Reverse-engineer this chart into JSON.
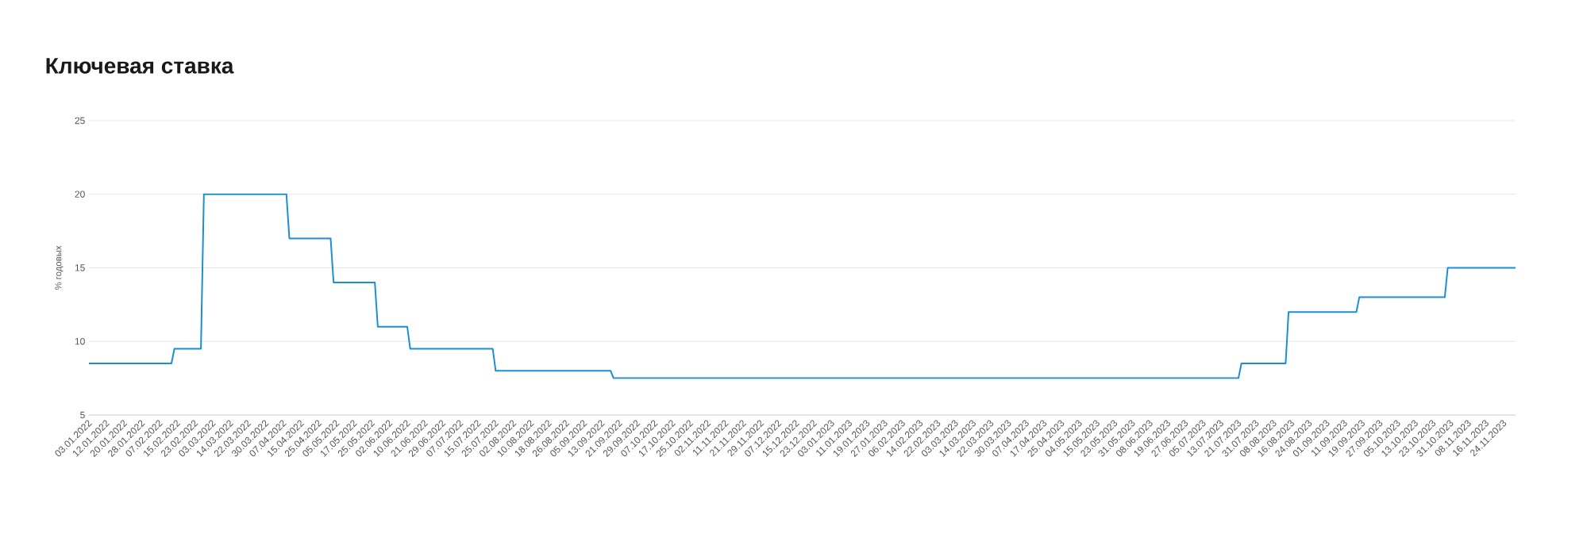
{
  "chart_data": {
    "type": "line",
    "title": "Ключевая ставка",
    "ylabel": "% годовых",
    "categories": [
      "03.01.2022",
      null,
      null,
      null,
      null,
      null,
      "12.01.2022",
      null,
      null,
      null,
      null,
      null,
      "20.01.2022",
      null,
      null,
      null,
      null,
      null,
      "28.01.2022",
      null,
      null,
      null,
      null,
      null,
      "07.02.2022",
      null,
      null,
      null,
      null,
      null,
      "15.02.2022",
      null,
      null,
      null,
      null,
      null,
      "23.02.2022",
      null,
      null,
      null,
      null,
      null,
      "03.03.2022",
      null,
      null,
      null,
      null,
      null,
      "14.03.2022",
      null,
      null,
      null,
      null,
      null,
      "22.03.2022",
      null,
      null,
      null,
      null,
      null,
      "30.03.2022",
      null,
      null,
      null,
      null,
      null,
      "07.04.2022",
      null,
      null,
      null,
      null,
      null,
      "15.04.2022",
      null,
      null,
      null,
      null,
      null,
      "25.04.2022",
      null,
      null,
      null,
      null,
      null,
      "05.05.2022",
      null,
      null,
      null,
      null,
      null,
      "17.05.2022",
      null,
      null,
      null,
      null,
      null,
      "25.05.2022",
      null,
      null,
      null,
      null,
      null,
      "02.06.2022",
      null,
      null,
      null,
      null,
      null,
      "10.06.2022",
      null,
      null,
      null,
      null,
      null,
      "21.06.2022",
      null,
      null,
      null,
      null,
      null,
      "29.06.2022",
      null,
      null,
      null,
      null,
      null,
      "07.07.2022",
      null,
      null,
      null,
      null,
      null,
      "15.07.2022",
      null,
      null,
      null,
      null,
      null,
      "25.07.2022",
      null,
      null,
      null,
      null,
      null,
      "02.08.2022",
      null,
      null,
      null,
      null,
      null,
      "10.08.2022",
      null,
      null,
      null,
      null,
      null,
      "18.08.2022",
      null,
      null,
      null,
      null,
      null,
      "26.08.2022",
      null,
      null,
      null,
      null,
      null,
      "05.09.2022",
      null,
      null,
      null,
      null,
      null,
      "13.09.2022",
      null,
      null,
      null,
      null,
      null,
      "21.09.2022",
      null,
      null,
      null,
      null,
      null,
      "29.09.2022",
      null,
      null,
      null,
      null,
      null,
      "07.10.2022",
      null,
      null,
      null,
      null,
      null,
      "17.10.2022",
      null,
      null,
      null,
      null,
      null,
      "25.10.2022",
      null,
      null,
      null,
      null,
      null,
      "02.11.2022",
      null,
      null,
      null,
      null,
      null,
      "11.11.2022",
      null,
      null,
      null,
      null,
      null,
      "21.11.2022",
      null,
      null,
      null,
      null,
      null,
      "29.11.2022",
      null,
      null,
      null,
      null,
      null,
      "07.12.2022",
      null,
      null,
      null,
      null,
      null,
      "15.12.2022",
      null,
      null,
      null,
      null,
      null,
      "23.12.2022",
      null,
      null,
      null,
      null,
      null,
      "03.01.2023",
      null,
      null,
      null,
      null,
      null,
      "11.01.2023",
      null,
      null,
      null,
      null,
      null,
      "19.01.2023",
      null,
      null,
      null,
      null,
      null,
      "27.01.2023",
      null,
      null,
      null,
      null,
      null,
      "06.02.2023",
      null,
      null,
      null,
      null,
      null,
      "14.02.2023",
      null,
      null,
      null,
      null,
      null,
      "22.02.2023",
      null,
      null,
      null,
      null,
      null,
      "03.03.2023",
      null,
      null,
      null,
      null,
      null,
      "14.03.2023",
      null,
      null,
      null,
      null,
      null,
      "22.03.2023",
      null,
      null,
      null,
      null,
      null,
      "30.03.2023",
      null,
      null,
      null,
      null,
      null,
      "07.04.2023",
      null,
      null,
      null,
      null,
      null,
      "17.04.2023",
      null,
      null,
      null,
      null,
      null,
      "25.04.2023",
      null,
      null,
      null,
      null,
      null,
      "04.05.2023",
      null,
      null,
      null,
      null,
      null,
      "15.05.2023",
      null,
      null,
      null,
      null,
      null,
      "23.05.2023",
      null,
      null,
      null,
      null,
      null,
      "31.05.2023",
      null,
      null,
      null,
      null,
      null,
      "08.06.2023",
      null,
      null,
      null,
      null,
      null,
      "19.06.2023",
      null,
      null,
      null,
      null,
      null,
      "27.06.2023",
      null,
      null,
      null,
      null,
      null,
      "05.07.2023",
      null,
      null,
      null,
      null,
      null,
      "13.07.2023",
      null,
      null,
      null,
      null,
      null,
      "21.07.2023",
      null,
      null,
      null,
      null,
      null,
      "31.07.2023",
      null,
      null,
      null,
      null,
      null,
      "08.08.2023",
      null,
      null,
      null,
      null,
      null,
      "16.08.2023",
      null,
      null,
      null,
      null,
      null,
      "24.08.2023",
      null,
      null,
      null,
      null,
      null,
      "01.09.2023",
      null,
      null,
      null,
      null,
      null,
      "11.09.2023",
      null,
      null,
      null,
      null,
      null,
      "19.09.2023",
      null,
      null,
      null,
      null,
      null,
      "27.09.2023",
      null,
      null,
      null,
      null,
      null,
      "05.10.2023",
      null,
      null,
      null,
      null,
      null,
      "13.10.2023",
      null,
      null,
      null,
      null,
      null,
      "23.10.2023",
      null,
      null,
      null,
      null,
      null,
      "31.10.2023",
      null,
      null,
      null,
      null,
      null,
      "08.11.2023",
      null,
      null,
      null,
      null,
      null,
      "16.11.2023",
      null,
      null,
      null,
      null,
      null,
      "24.11.2023",
      null,
      null,
      null,
      null
    ],
    "values": [
      8.5,
      8.5,
      8.5,
      8.5,
      8.5,
      8.5,
      8.5,
      8.5,
      8.5,
      8.5,
      8.5,
      8.5,
      8.5,
      8.5,
      8.5,
      8.5,
      8.5,
      8.5,
      8.5,
      8.5,
      8.5,
      8.5,
      8.5,
      8.5,
      8.5,
      8.5,
      8.5,
      8.5,
      8.5,
      9.5,
      9.5,
      9.5,
      9.5,
      9.5,
      9.5,
      9.5,
      9.5,
      9.5,
      9.5,
      20,
      20,
      20,
      20,
      20,
      20,
      20,
      20,
      20,
      20,
      20,
      20,
      20,
      20,
      20,
      20,
      20,
      20,
      20,
      20,
      20,
      20,
      20,
      20,
      20,
      20,
      20,
      20,
      20,
      17,
      17,
      17,
      17,
      17,
      17,
      17,
      17,
      17,
      17,
      17,
      17,
      17,
      17,
      17,
      14,
      14,
      14,
      14,
      14,
      14,
      14,
      14,
      14,
      14,
      14,
      14,
      14,
      14,
      14,
      11,
      11,
      11,
      11,
      11,
      11,
      11,
      11,
      11,
      11,
      11,
      9.5,
      9.5,
      9.5,
      9.5,
      9.5,
      9.5,
      9.5,
      9.5,
      9.5,
      9.5,
      9.5,
      9.5,
      9.5,
      9.5,
      9.5,
      9.5,
      9.5,
      9.5,
      9.5,
      9.5,
      9.5,
      9.5,
      9.5,
      9.5,
      9.5,
      9.5,
      9.5,
      9.5,
      9.5,
      8,
      8,
      8,
      8,
      8,
      8,
      8,
      8,
      8,
      8,
      8,
      8,
      8,
      8,
      8,
      8,
      8,
      8,
      8,
      8,
      8,
      8,
      8,
      8,
      8,
      8,
      8,
      8,
      8,
      8,
      8,
      8,
      8,
      8,
      8,
      8,
      8,
      8,
      8,
      8,
      7.5,
      7.5,
      7.5,
      7.5,
      7.5,
      7.5,
      7.5,
      7.5,
      7.5,
      7.5,
      7.5,
      7.5,
      7.5,
      7.5,
      7.5,
      7.5,
      7.5,
      7.5,
      7.5,
      7.5,
      7.5,
      7.5,
      7.5,
      7.5,
      7.5,
      7.5,
      7.5,
      7.5,
      7.5,
      7.5,
      7.5,
      7.5,
      7.5,
      7.5,
      7.5,
      7.5,
      7.5,
      7.5,
      7.5,
      7.5,
      7.5,
      7.5,
      7.5,
      7.5,
      7.5,
      7.5,
      7.5,
      7.5,
      7.5,
      7.5,
      7.5,
      7.5,
      7.5,
      7.5,
      7.5,
      7.5,
      7.5,
      7.5,
      7.5,
      7.5,
      7.5,
      7.5,
      7.5,
      7.5,
      7.5,
      7.5,
      7.5,
      7.5,
      7.5,
      7.5,
      7.5,
      7.5,
      7.5,
      7.5,
      7.5,
      7.5,
      7.5,
      7.5,
      7.5,
      7.5,
      7.5,
      7.5,
      7.5,
      7.5,
      7.5,
      7.5,
      7.5,
      7.5,
      7.5,
      7.5,
      7.5,
      7.5,
      7.5,
      7.5,
      7.5,
      7.5,
      7.5,
      7.5,
      7.5,
      7.5,
      7.5,
      7.5,
      7.5,
      7.5,
      7.5,
      7.5,
      7.5,
      7.5,
      7.5,
      7.5,
      7.5,
      7.5,
      7.5,
      7.5,
      7.5,
      7.5,
      7.5,
      7.5,
      7.5,
      7.5,
      7.5,
      7.5,
      7.5,
      7.5,
      7.5,
      7.5,
      7.5,
      7.5,
      7.5,
      7.5,
      7.5,
      7.5,
      7.5,
      7.5,
      7.5,
      7.5,
      7.5,
      7.5,
      7.5,
      7.5,
      7.5,
      7.5,
      7.5,
      7.5,
      7.5,
      7.5,
      7.5,
      7.5,
      7.5,
      7.5,
      7.5,
      7.5,
      7.5,
      7.5,
      7.5,
      7.5,
      7.5,
      7.5,
      7.5,
      7.5,
      7.5,
      7.5,
      7.5,
      7.5,
      7.5,
      7.5,
      7.5,
      7.5,
      7.5,
      7.5,
      7.5,
      7.5,
      7.5,
      7.5,
      7.5,
      7.5,
      7.5,
      7.5,
      7.5,
      7.5,
      7.5,
      7.5,
      7.5,
      7.5,
      7.5,
      7.5,
      7.5,
      7.5,
      7.5,
      7.5,
      7.5,
      7.5,
      7.5,
      7.5,
      7.5,
      7.5,
      7.5,
      7.5,
      7.5,
      7.5,
      7.5,
      7.5,
      7.5,
      7.5,
      7.5,
      7.5,
      7.5,
      7.5,
      7.5,
      7.5,
      7.5,
      7.5,
      7.5,
      8.5,
      8.5,
      8.5,
      8.5,
      8.5,
      8.5,
      8.5,
      8.5,
      8.5,
      8.5,
      8.5,
      8.5,
      8.5,
      8.5,
      8.5,
      8.5,
      12,
      12,
      12,
      12,
      12,
      12,
      12,
      12,
      12,
      12,
      12,
      12,
      12,
      12,
      12,
      12,
      12,
      12,
      12,
      12,
      12,
      12,
      12,
      12,
      13,
      13,
      13,
      13,
      13,
      13,
      13,
      13,
      13,
      13,
      13,
      13,
      13,
      13,
      13,
      13,
      13,
      13,
      13,
      13,
      13,
      13,
      13,
      13,
      13,
      13,
      13,
      13,
      13,
      13,
      15,
      15,
      15,
      15,
      15,
      15,
      15,
      15,
      15,
      15,
      15,
      15,
      15,
      15,
      15,
      15,
      15,
      15,
      15,
      15,
      15,
      15,
      15,
      15
    ],
    "color": "#1b8fd2",
    "ylim": [
      5,
      25
    ],
    "yticks": [
      5,
      10,
      15,
      20,
      25
    ],
    "grid": "y"
  }
}
